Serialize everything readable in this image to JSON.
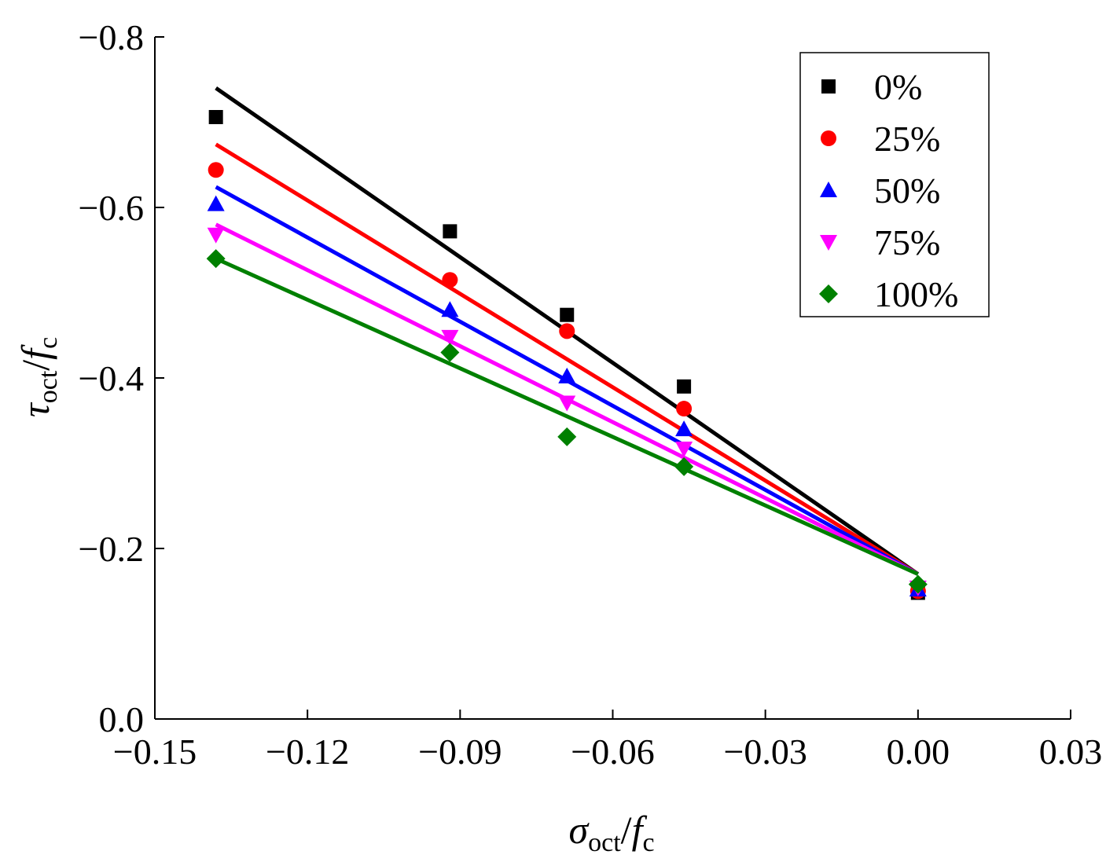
{
  "chart_data": {
    "type": "scatter",
    "xlabel": {
      "main": "σ",
      "sub": "oct",
      "sep": "/",
      "main2": "f",
      "sub2": "c"
    },
    "ylabel": {
      "main": "τ",
      "sub": "oct",
      "sep": "/",
      "main2": "f",
      "sub2": "c"
    },
    "xlim": [
      -0.15,
      0.03
    ],
    "ylim": [
      0.0,
      -0.8
    ],
    "xticks": [
      -0.15,
      -0.12,
      -0.09,
      -0.06,
      -0.03,
      0.0,
      0.03
    ],
    "xtick_labels": [
      "−0.15",
      "−0.12",
      "−0.09",
      "−0.06",
      "−0.03",
      "0.00",
      "0.03"
    ],
    "yticks": [
      0.0,
      -0.2,
      -0.4,
      -0.6,
      -0.8
    ],
    "ytick_labels": [
      "0.0",
      "−0.2",
      "−0.4",
      "−0.6",
      "−0.8"
    ],
    "legend_position": "top-right",
    "series": [
      {
        "name": "0%",
        "color": "#000000",
        "marker": "square",
        "x": [
          -0.138,
          -0.092,
          -0.069,
          -0.046,
          0.0
        ],
        "y": [
          -0.706,
          -0.572,
          -0.474,
          -0.39,
          -0.148
        ],
        "fit": {
          "x": [
            -0.138,
            0.0
          ],
          "y": [
            -0.74,
            -0.17
          ]
        }
      },
      {
        "name": "25%",
        "color": "#ff0000",
        "marker": "circle",
        "x": [
          -0.138,
          -0.092,
          -0.069,
          -0.046,
          0.0
        ],
        "y": [
          -0.644,
          -0.515,
          -0.455,
          -0.364,
          -0.15
        ],
        "fit": {
          "x": [
            -0.138,
            0.0
          ],
          "y": [
            -0.674,
            -0.17
          ]
        }
      },
      {
        "name": "50%",
        "color": "#0000ff",
        "marker": "triangle-up",
        "x": [
          -0.138,
          -0.092,
          -0.069,
          -0.046,
          0.0
        ],
        "y": [
          -0.604,
          -0.48,
          -0.402,
          -0.34,
          -0.152
        ],
        "fit": {
          "x": [
            -0.138,
            0.0
          ],
          "y": [
            -0.624,
            -0.17
          ]
        }
      },
      {
        "name": "75%",
        "color": "#ff00ff",
        "marker": "triangle-down",
        "x": [
          -0.138,
          -0.092,
          -0.069,
          -0.046,
          0.0
        ],
        "y": [
          -0.568,
          -0.448,
          -0.371,
          -0.317,
          -0.154
        ],
        "fit": {
          "x": [
            -0.138,
            0.0
          ],
          "y": [
            -0.58,
            -0.17
          ]
        }
      },
      {
        "name": "100%",
        "color": "#008000",
        "marker": "diamond",
        "x": [
          -0.138,
          -0.092,
          -0.069,
          -0.046,
          0.0
        ],
        "y": [
          -0.54,
          -0.43,
          -0.331,
          -0.296,
          -0.158
        ],
        "fit": {
          "x": [
            -0.138,
            0.0
          ],
          "y": [
            -0.54,
            -0.17
          ]
        }
      }
    ]
  }
}
